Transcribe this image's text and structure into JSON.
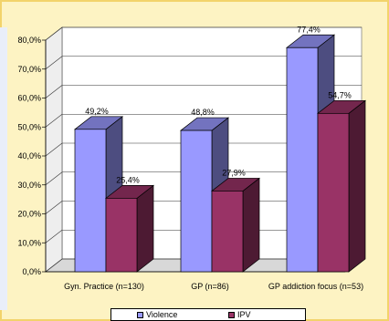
{
  "chart_data": {
    "type": "bar",
    "categories": [
      "Gyn. Practice (n=130)",
      "GP (n=86)",
      "GP addiction focus (n=53)"
    ],
    "series": [
      {
        "name": "Violence",
        "values": [
          49.2,
          48.8,
          77.4
        ],
        "labels": [
          "49,2%",
          "48,8%",
          "77,4%"
        ],
        "color": "#9999ff"
      },
      {
        "name": "IPV",
        "values": [
          25.4,
          27.9,
          54.7
        ],
        "labels": [
          "25,4%",
          "27,9%",
          "54,7%"
        ],
        "color": "#993366"
      }
    ],
    "y_ticks": [
      "0,0%",
      "10,0%",
      "20,0%",
      "30,0%",
      "40,0%",
      "50,0%",
      "60,0%",
      "70,0%",
      "80,0%"
    ],
    "ylim": [
      0,
      80
    ],
    "grid": true,
    "legend_position": "bottom",
    "title": "",
    "xlabel": "",
    "ylabel": ""
  },
  "colors": {
    "background": "#fdf3c3",
    "border": "#f2d36b",
    "wall": "#ffffff"
  }
}
